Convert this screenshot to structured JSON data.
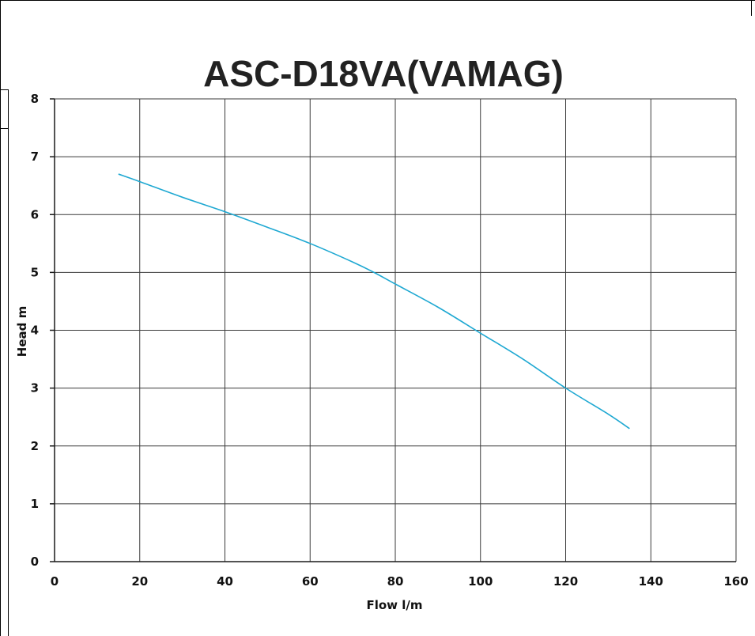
{
  "chart_data": {
    "type": "line",
    "title": "ASC-D18VA(VAMAG)",
    "xlabel": "Flow l/m",
    "ylabel": "Head m",
    "xlim": [
      0,
      160
    ],
    "ylim": [
      0,
      8
    ],
    "x_ticks": [
      "0",
      "20",
      "40",
      "60",
      "80",
      "100",
      "120",
      "140",
      "160"
    ],
    "y_ticks": [
      "0",
      "1",
      "2",
      "3",
      "4",
      "5",
      "6",
      "7",
      "8"
    ],
    "grid": true,
    "series": [
      {
        "color": "#1ea8d2",
        "x": [
          15,
          20,
          30,
          40,
          50,
          60,
          70,
          75,
          80,
          90,
          100,
          110,
          120,
          130,
          135
        ],
        "y": [
          6.7,
          6.57,
          6.3,
          6.05,
          5.78,
          5.5,
          5.18,
          5.0,
          4.8,
          4.4,
          3.95,
          3.5,
          3.0,
          2.55,
          2.3
        ]
      }
    ]
  }
}
